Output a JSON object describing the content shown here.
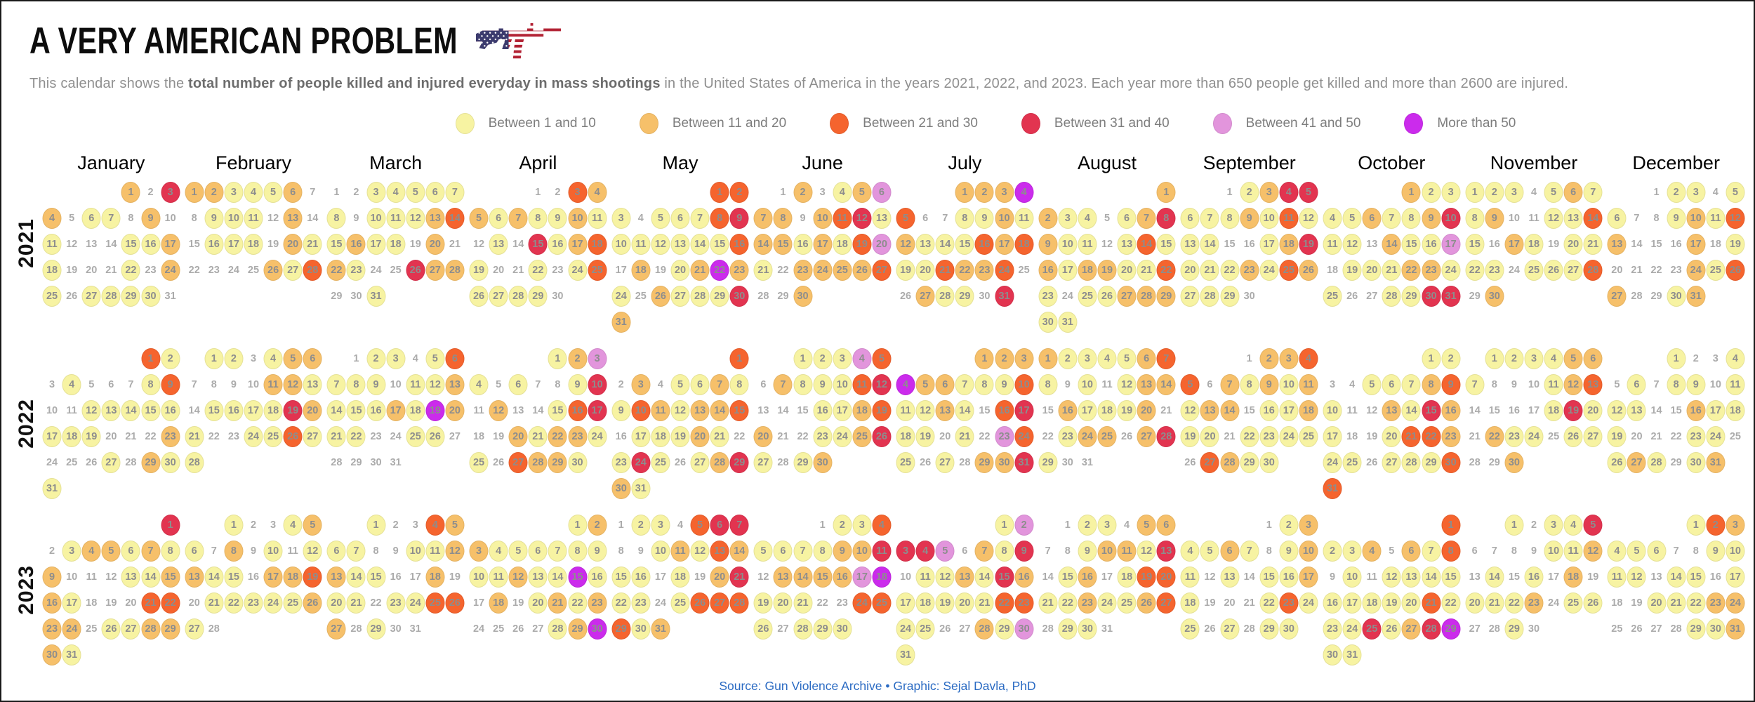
{
  "header": {
    "title": "A VERY AMERICAN PROBLEM",
    "subtitle_prefix": "This calendar shows the ",
    "subtitle_bold": "total number of people killed and injured everyday in mass shootings",
    "subtitle_suffix": " in the United States of America in the years 2021, 2022, and 2023. Each year more than 650 people get killed and more than 2600 are injured.",
    "gun_icon": "american-flag-rifle",
    "flag_blue": "#3C3B6E",
    "flag_red": "#B22234"
  },
  "legend": [
    {
      "label": "Between 1 and 10",
      "color": "#F7F3A2"
    },
    {
      "label": "Between 11 and 20",
      "color": "#F6C06A"
    },
    {
      "label": "Between 21 and 30",
      "color": "#F5642E"
    },
    {
      "label": "Between 31 and 40",
      "color": "#E23450"
    },
    {
      "label": "Between 41 and 50",
      "color": "#E295DC"
    },
    {
      "label": "More than 50",
      "color": "#CB2BEC"
    }
  ],
  "footer": {
    "text": "Source: Gun Violence Archive • Graphic: Sejal Davla, PhD",
    "color": "#2B6BC3"
  },
  "chart_data": {
    "type": "heatmap",
    "title": "A VERY AMERICAN PROBLEM",
    "unit": "people killed and injured per day in mass shootings, USA",
    "week_start": "Monday",
    "month_labels": [
      "January",
      "February",
      "March",
      "April",
      "May",
      "June",
      "July",
      "August",
      "September",
      "October",
      "November",
      "December"
    ],
    "category_scale": {
      "0": "no circle",
      "1": "1-10",
      "2": "11-20",
      "3": "21-30",
      "4": "31-40",
      "5": "41-50",
      "6": "more than 50"
    },
    "years": [
      {
        "year": "2021",
        "months": [
          "2042011020100011210001021011110",
          "2211120011102001110210000213",
          "0011111101112312110202100422001",
          "003221211210104123100101311110",
          "3310111341111113020126210211142",
          "020125220234122121351022223002",
          "2226300112121113231132230021104",
          "2211012421101312122113101122211",
          "012441112131110012411121321110",
          "2111121124110211501112211001144",
          "111012112001131021011110111302",
          "0110110012132000201000021320012"
        ]
      },
      {
        "year": "2022",
        "months": [
          "3101000130011111111000200010211",
          "1101220000221011114210011311",
          "0110131110112111216211001100000",
          "125101001402001340021221103221",
          "3020112113212230111210141012421",
          "111530211134000112320011241012",
          "2226221113112103411010531010224",
          "2111123101012202111200122024100",
          "022330212121220112110111103211",
          "1100111231002142100133211011133",
          "111122100012300001410211011002",
          "1001010110111002111000110121012"
        ]
      },
      {
        "year": "2023",
        "months": [
          "4012212120001122100033220112221",
          "1001210201012110223011111210",
          "1003211001122110020110113320100",
          "122111111112116102012120000126",
          "0110344001213211010241101333312",
          "011311112240222256111003310111",
          "1544502140112142111113311002151",
          "0110220012214012013311211230110",
          "012112101210101121000131101011",
          "3112021301011111111131114124611",
          "101140000112010102011120110010",
          "1321110011110110100111220000112"
        ]
      }
    ]
  }
}
